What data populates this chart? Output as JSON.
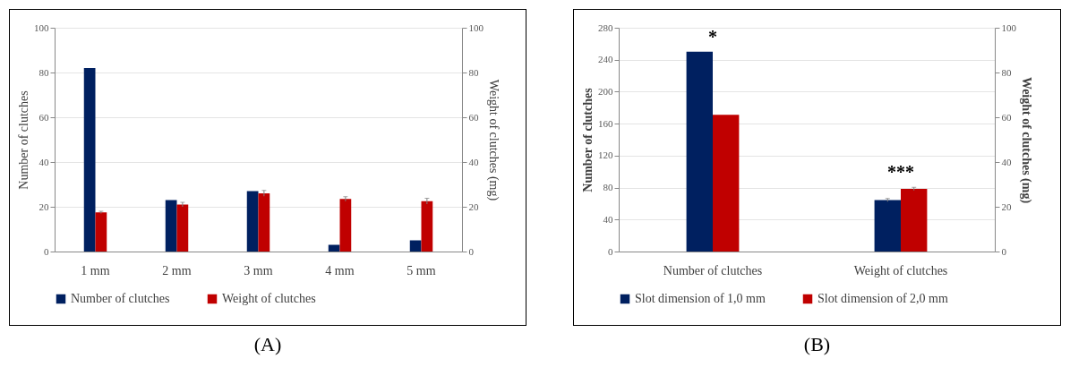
{
  "chart_data": [
    {
      "type": "bar",
      "title": "(A)",
      "categories": [
        "1 mm",
        "2 mm",
        "3 mm",
        "4 mm",
        "5 mm"
      ],
      "ylabel": "Number of clutches",
      "y2label": "Weight of clutches (mg)",
      "ylim": [
        0,
        100
      ],
      "yticks": [
        0,
        20,
        40,
        60,
        80,
        100
      ],
      "y2lim": [
        0,
        100
      ],
      "y2ticks": [
        0,
        20,
        40,
        60,
        80,
        100
      ],
      "grid": "y",
      "legend": "bottom",
      "series": [
        {
          "name": "Number of clutches",
          "color": "#002060",
          "values": [
            82,
            23,
            27,
            3,
            5
          ]
        },
        {
          "name": "Weight of clutches",
          "color": "#c00000",
          "axis": "y2",
          "values": [
            17.5,
            21,
            26,
            23.5,
            22.5
          ],
          "errors": [
            0.5,
            1,
            1.3,
            1,
            1.3
          ]
        }
      ]
    },
    {
      "type": "bar",
      "title": "(B)",
      "categories": [
        "Number of clutches",
        "Weight of clutches"
      ],
      "ylabel": "Number of clutches",
      "y2label": "Weight of clutches (mg)",
      "ylim": [
        0,
        280
      ],
      "yticks": [
        0,
        40,
        80,
        120,
        160,
        200,
        240,
        280
      ],
      "y2lim": [
        0,
        100
      ],
      "y2ticks": [
        0,
        20,
        40,
        60,
        80,
        100
      ],
      "grid": "y",
      "legend": "bottom",
      "annotations": [
        "*",
        "***"
      ],
      "series": [
        {
          "name": "Slot dimension of 1,0 mm",
          "color": "#002060",
          "values": [
            250,
            null
          ]
        },
        {
          "color": "#002060",
          "axis": "y2",
          "values": [
            null,
            23
          ],
          "errors": [
            null,
            0.7
          ]
        },
        {
          "name": "Slot dimension of 2,0 mm",
          "color": "#c00000",
          "values": [
            171,
            null
          ]
        },
        {
          "color": "#c00000",
          "axis": "y2",
          "values": [
            null,
            28
          ],
          "errors": [
            null,
            0.7
          ]
        }
      ]
    }
  ]
}
